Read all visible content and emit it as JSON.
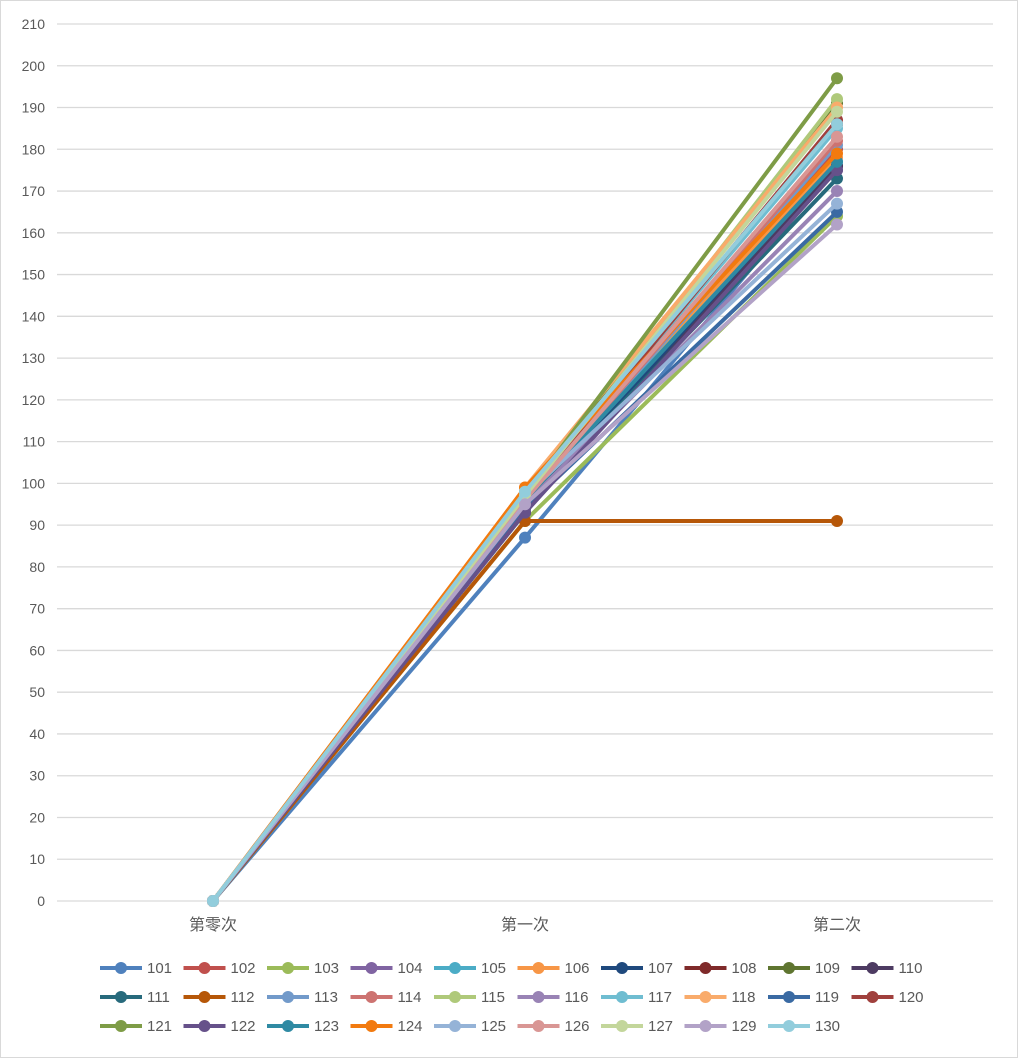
{
  "chart_data": {
    "type": "line",
    "title": "",
    "xlabel": "",
    "ylabel": "",
    "categories": [
      "第零次",
      "第一次",
      "第二次"
    ],
    "ylim": [
      0,
      210
    ],
    "yticks": [
      0,
      10,
      20,
      30,
      40,
      50,
      60,
      70,
      80,
      90,
      100,
      110,
      120,
      130,
      140,
      150,
      160,
      170,
      180,
      190,
      200,
      210
    ],
    "grid": true,
    "legend_position": "bottom",
    "series": [
      {
        "name": "101",
        "color": "#4f81bd",
        "values": [
          0,
          87,
          176
        ]
      },
      {
        "name": "102",
        "color": "#c0504d",
        "values": [
          0,
          96,
          180
        ]
      },
      {
        "name": "103",
        "color": "#9bbb59",
        "values": [
          0,
          91,
          164
        ]
      },
      {
        "name": "104",
        "color": "#8064a2",
        "values": [
          0,
          94,
          175
        ]
      },
      {
        "name": "105",
        "color": "#4bacc6",
        "values": [
          0,
          97,
          177
        ]
      },
      {
        "name": "106",
        "color": "#f79646",
        "values": [
          0,
          98,
          178
        ]
      },
      {
        "name": "107",
        "color": "#1f497d",
        "values": [
          0,
          95,
          176
        ]
      },
      {
        "name": "108",
        "color": "#7f2a2a",
        "values": [
          0,
          96,
          186
        ]
      },
      {
        "name": "109",
        "color": "#5f7530",
        "values": [
          0,
          97,
          191
        ]
      },
      {
        "name": "110",
        "color": "#4d3b62",
        "values": [
          0,
          93,
          176
        ]
      },
      {
        "name": "111",
        "color": "#276a7c",
        "values": [
          0,
          95,
          173
        ]
      },
      {
        "name": "112",
        "color": "#b65708",
        "values": [
          0,
          91,
          91
        ]
      },
      {
        "name": "113",
        "color": "#729aca",
        "values": [
          0,
          96,
          181
        ]
      },
      {
        "name": "114",
        "color": "#cd7371",
        "values": [
          0,
          96,
          182
        ]
      },
      {
        "name": "115",
        "color": "#afc97a",
        "values": [
          0,
          96,
          192
        ]
      },
      {
        "name": "116",
        "color": "#9983b5",
        "values": [
          0,
          95,
          170
        ]
      },
      {
        "name": "117",
        "color": "#6fbdd1",
        "values": [
          0,
          97,
          185
        ]
      },
      {
        "name": "118",
        "color": "#f9ab6b",
        "values": [
          0,
          99,
          190
        ]
      },
      {
        "name": "119",
        "color": "#3a6aa3",
        "values": [
          0,
          94,
          165
        ]
      },
      {
        "name": "120",
        "color": "#a0403d",
        "values": [
          0,
          96,
          187
        ]
      },
      {
        "name": "121",
        "color": "#7e9c46",
        "values": [
          0,
          97,
          197
        ]
      },
      {
        "name": "122",
        "color": "#66518a",
        "values": [
          0,
          93,
          175
        ]
      },
      {
        "name": "123",
        "color": "#2f8aa3",
        "values": [
          0,
          96,
          177
        ]
      },
      {
        "name": "124",
        "color": "#f27a0f",
        "values": [
          0,
          99,
          179
        ]
      },
      {
        "name": "125",
        "color": "#95b3d7",
        "values": [
          0,
          97,
          167
        ]
      },
      {
        "name": "126",
        "color": "#d99694",
        "values": [
          0,
          96,
          183
        ]
      },
      {
        "name": "127",
        "color": "#c3d69b",
        "values": [
          0,
          97,
          189
        ]
      },
      {
        "name": "129",
        "color": "#b2a2c7",
        "values": [
          0,
          95,
          162
        ]
      },
      {
        "name": "130",
        "color": "#92cddc",
        "values": [
          0,
          98,
          186
        ]
      }
    ]
  }
}
